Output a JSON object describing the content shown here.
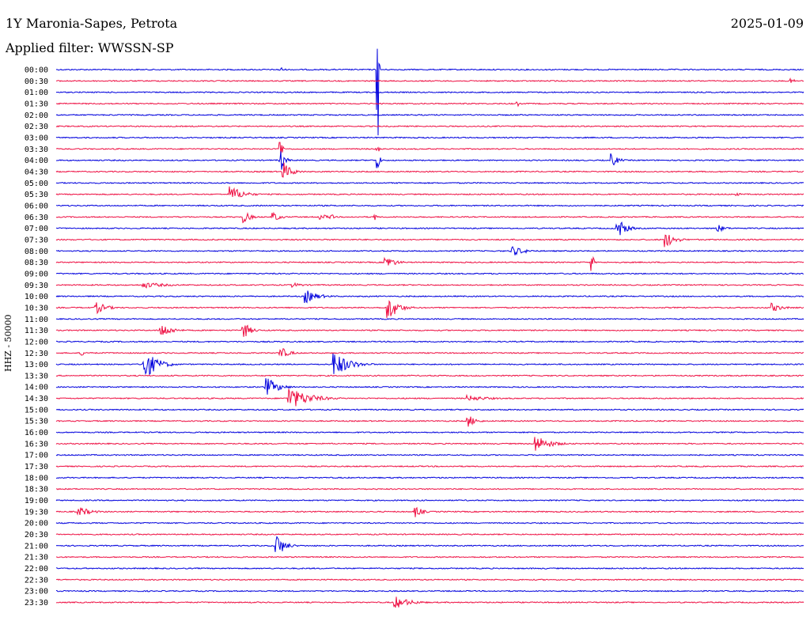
{
  "header": {
    "station": "1Y Maronia-Sapes, Petrota",
    "date": "2025-01-09",
    "filter": "Applied filter: WWSSN-SP",
    "channel_label": "HHZ - 50000"
  },
  "colors": {
    "blue": "#0000dd",
    "red": "#ee1144"
  },
  "chart_data": {
    "type": "line",
    "title": "1Y Maronia-Sapes, Petrota",
    "ylabel": "HHZ - 50000",
    "rows": [
      "00:00",
      "00:30",
      "01:00",
      "01:30",
      "02:00",
      "02:30",
      "03:00",
      "03:30",
      "04:00",
      "04:30",
      "05:00",
      "05:30",
      "06:00",
      "06:30",
      "07:00",
      "07:30",
      "08:00",
      "08:30",
      "09:00",
      "09:30",
      "10:00",
      "10:30",
      "11:00",
      "11:30",
      "12:00",
      "12:30",
      "13:00",
      "13:30",
      "14:00",
      "14:30",
      "15:00",
      "15:30",
      "16:00",
      "16:30",
      "17:00",
      "17:30",
      "18:00",
      "18:30",
      "19:00",
      "19:30",
      "20:00",
      "20:30",
      "21:00",
      "21:30",
      "22:00",
      "22:30",
      "23:00",
      "23:30"
    ],
    "row_colors": [
      "blue",
      "red"
    ],
    "events": [
      {
        "row": "00:00",
        "minute": 9.0,
        "amp": 3,
        "dur": 0.5
      },
      {
        "row": "00:00",
        "minute": 12.9,
        "amp": 90,
        "dur": 0.1
      },
      {
        "row": "00:30",
        "minute": 29.5,
        "amp": 3,
        "dur": 0.6
      },
      {
        "row": "01:30",
        "minute": 18.5,
        "amp": 3,
        "dur": 0.2
      },
      {
        "row": "03:30",
        "minute": 9.0,
        "amp": 18,
        "dur": 0.2
      },
      {
        "row": "03:30",
        "minute": 12.9,
        "amp": 14,
        "dur": 0.15
      },
      {
        "row": "04:00",
        "minute": 9.0,
        "amp": 14,
        "dur": 0.5
      },
      {
        "row": "04:00",
        "minute": 12.9,
        "amp": 14,
        "dur": 0.25
      },
      {
        "row": "04:00",
        "minute": 22.3,
        "amp": 9,
        "dur": 0.7
      },
      {
        "row": "04:30",
        "minute": 9.1,
        "amp": 12,
        "dur": 1.0
      },
      {
        "row": "05:30",
        "minute": 7.0,
        "amp": 11,
        "dur": 1.4
      },
      {
        "row": "05:30",
        "minute": 27.3,
        "amp": 2,
        "dur": 1.0
      },
      {
        "row": "06:30",
        "minute": 7.5,
        "amp": 9,
        "dur": 0.8
      },
      {
        "row": "06:30",
        "minute": 8.7,
        "amp": 7,
        "dur": 0.8
      },
      {
        "row": "06:30",
        "minute": 10.6,
        "amp": 5,
        "dur": 0.7
      },
      {
        "row": "06:30",
        "minute": 11.0,
        "amp": 5,
        "dur": 0.4
      },
      {
        "row": "06:30",
        "minute": 12.8,
        "amp": 5,
        "dur": 0.2
      },
      {
        "row": "07:00",
        "minute": 22.5,
        "amp": 16,
        "dur": 0.9
      },
      {
        "row": "07:00",
        "minute": 26.5,
        "amp": 6,
        "dur": 0.9
      },
      {
        "row": "07:30",
        "minute": 24.4,
        "amp": 12,
        "dur": 1.1
      },
      {
        "row": "08:00",
        "minute": 18.3,
        "amp": 7,
        "dur": 1.4
      },
      {
        "row": "08:30",
        "minute": 13.2,
        "amp": 10,
        "dur": 1.0
      },
      {
        "row": "08:30",
        "minute": 21.5,
        "amp": 14,
        "dur": 0.2
      },
      {
        "row": "09:30",
        "minute": 3.5,
        "amp": 4,
        "dur": 2.6
      },
      {
        "row": "09:30",
        "minute": 9.5,
        "amp": 3,
        "dur": 1.3
      },
      {
        "row": "10:00",
        "minute": 10.0,
        "amp": 9,
        "dur": 1.4
      },
      {
        "row": "10:30",
        "minute": 1.6,
        "amp": 8,
        "dur": 1.2
      },
      {
        "row": "10:30",
        "minute": 13.3,
        "amp": 18,
        "dur": 1.1
      },
      {
        "row": "10:30",
        "minute": 28.7,
        "amp": 6,
        "dur": 1.2
      },
      {
        "row": "11:30",
        "minute": 4.2,
        "amp": 10,
        "dur": 1.2
      },
      {
        "row": "11:30",
        "minute": 7.5,
        "amp": 12,
        "dur": 0.8
      },
      {
        "row": "12:30",
        "minute": 1.0,
        "amp": 4,
        "dur": 0.5
      },
      {
        "row": "12:30",
        "minute": 9.0,
        "amp": 8,
        "dur": 1.0
      },
      {
        "row": "13:00",
        "minute": 3.5,
        "amp": 22,
        "dur": 1.4
      },
      {
        "row": "13:00",
        "minute": 11.1,
        "amp": 18,
        "dur": 1.7
      },
      {
        "row": "14:00",
        "minute": 8.4,
        "amp": 14,
        "dur": 1.3
      },
      {
        "row": "14:30",
        "minute": 9.3,
        "amp": 16,
        "dur": 2.2
      },
      {
        "row": "14:30",
        "minute": 16.5,
        "amp": 4,
        "dur": 2.5
      },
      {
        "row": "15:30",
        "minute": 16.5,
        "amp": 9,
        "dur": 0.9
      },
      {
        "row": "16:30",
        "minute": 19.2,
        "amp": 12,
        "dur": 1.6
      },
      {
        "row": "19:30",
        "minute": 0.9,
        "amp": 7,
        "dur": 1.3
      },
      {
        "row": "19:30",
        "minute": 14.4,
        "amp": 8,
        "dur": 0.8
      },
      {
        "row": "21:00",
        "minute": 8.8,
        "amp": 18,
        "dur": 0.9
      },
      {
        "row": "23:30",
        "minute": 13.6,
        "amp": 8,
        "dur": 1.8
      }
    ]
  }
}
